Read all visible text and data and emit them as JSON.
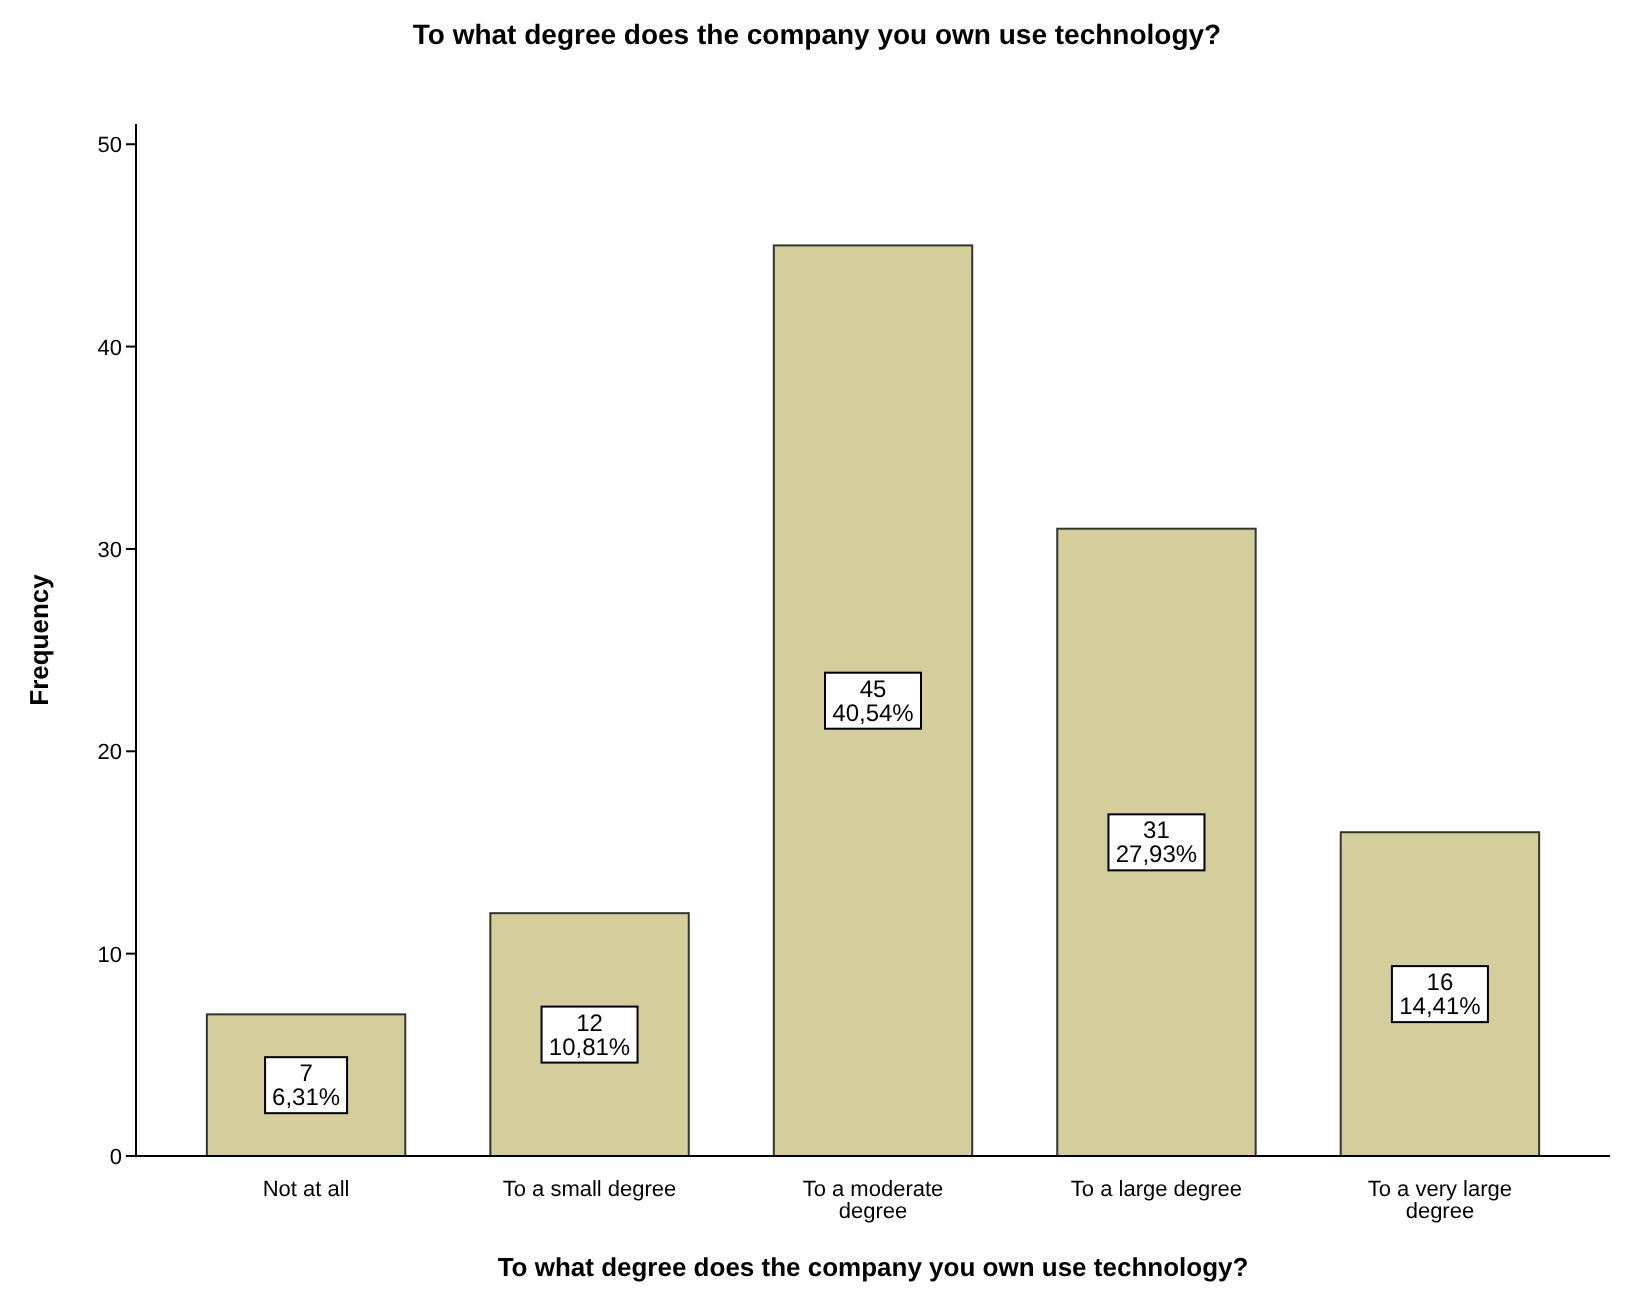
{
  "chart_data": {
    "type": "bar",
    "title": "To what degree does the company you own use technology?",
    "xlabel": "To what degree does the company you own use technology?",
    "ylabel": "Frequency",
    "categories": [
      "Not at all",
      "To a small degree",
      "To a moderate degree",
      "To a large degree",
      "To a very large degree"
    ],
    "values": [
      7,
      12,
      45,
      31,
      16
    ],
    "color": "#d3ce9b",
    "value_labels": [
      "7\n6,31%",
      "12\n10,81%",
      "45\n40,54%",
      "31\n27,93%",
      "16\n14,41%"
    ],
    "ylim": [
      0,
      51
    ],
    "yticks": [
      0,
      10,
      20,
      30,
      40,
      50
    ],
    "grid": false
  }
}
